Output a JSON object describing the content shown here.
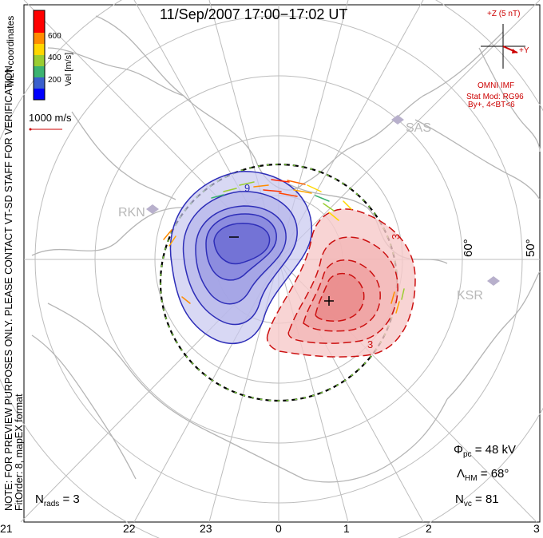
{
  "title": "11/Sep/2007  17:00−17:02  UT",
  "colorbar": {
    "label": "Vel [m/s]",
    "tick_labels": [
      "600",
      "400",
      "200"
    ],
    "colors": [
      "#0000ff",
      "#3a5fcd",
      "#3cb371",
      "#9acd32",
      "#ffd700",
      "#ff8c00",
      "#ff0000"
    ]
  },
  "coord_label": "MLT coordinates",
  "ref_vector": "1000 m/s",
  "imf": {
    "z_label": "+Z (5 nT)",
    "y_label": "+Y",
    "source": "OMNI IMF",
    "model": "Stat Mod: RG96",
    "condition": "By+, 4<BT<6"
  },
  "note": "NOTE: FOR PREVIEW PURPOSES ONLY. PLEASE CONTACT VT-SD STAFF FOR VERIFICATION.",
  "fit_order": "FitOrder: 8, mapEX format",
  "latitude_labels": [
    "60°",
    "50°"
  ],
  "stations": [
    "SAS",
    "RKN",
    "KSR"
  ],
  "contour_labels": [
    "9",
    "3",
    "3"
  ],
  "stats": {
    "phi_pc_sym": "Φ",
    "phi_pc_sub": "pc",
    "phi_pc_val": "= 48 kV",
    "lambda_sym": "Λ",
    "lambda_sub": "HM",
    "lambda_val": "= 68°",
    "nvc_sym": "N",
    "nvc_sub": "vc",
    "nvc_val": "= 81",
    "nrads_sym": "N",
    "nrads_sub": "rads",
    "nrads_val": "= 3"
  },
  "mlt_ticks": [
    "21",
    "22",
    "23",
    "0",
    "1",
    "2",
    "3"
  ],
  "potential_colors": {
    "negative": "#2e2eb8",
    "positive": "#cc1111"
  }
}
